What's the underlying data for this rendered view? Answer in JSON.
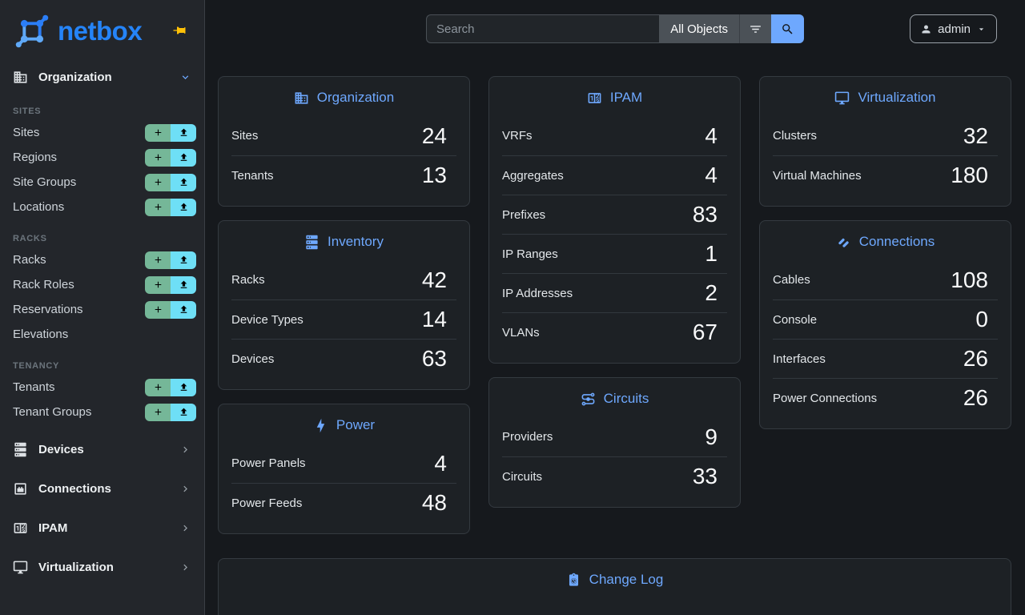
{
  "app": {
    "brand": "netbox",
    "accent_color": "#6ea8fe",
    "add_button_color": "#75b798",
    "import_button_color": "#6edff6",
    "pin_color": "#ffc107"
  },
  "topbar": {
    "search_placeholder": "Search",
    "scope_label": "All Objects",
    "user_label": "admin"
  },
  "sidebar": {
    "primary_group": {
      "label": "Organization",
      "icon": "building-icon",
      "expanded": true
    },
    "sections": [
      {
        "title": "Sites",
        "items": [
          {
            "label": "Sites",
            "actions": true
          },
          {
            "label": "Regions",
            "actions": true
          },
          {
            "label": "Site Groups",
            "actions": true
          },
          {
            "label": "Locations",
            "actions": true
          }
        ]
      },
      {
        "title": "Racks",
        "items": [
          {
            "label": "Racks",
            "actions": true
          },
          {
            "label": "Rack Roles",
            "actions": true
          },
          {
            "label": "Reservations",
            "actions": true
          },
          {
            "label": "Elevations",
            "actions": false
          }
        ]
      },
      {
        "title": "Tenancy",
        "items": [
          {
            "label": "Tenants",
            "actions": true
          },
          {
            "label": "Tenant Groups",
            "actions": true
          }
        ]
      }
    ],
    "groups": [
      {
        "label": "Devices",
        "icon": "server-icon"
      },
      {
        "label": "Connections",
        "icon": "ethernet-port-icon"
      },
      {
        "label": "IPAM",
        "icon": "counter-icon"
      },
      {
        "label": "Virtualization",
        "icon": "monitor-icon"
      }
    ]
  },
  "dashboard": {
    "columns": [
      [
        {
          "title": "Organization",
          "icon": "building-icon",
          "rows": [
            {
              "label": "Sites",
              "value": "24"
            },
            {
              "label": "Tenants",
              "value": "13"
            }
          ]
        },
        {
          "title": "Inventory",
          "icon": "server-icon",
          "rows": [
            {
              "label": "Racks",
              "value": "42"
            },
            {
              "label": "Device Types",
              "value": "14"
            },
            {
              "label": "Devices",
              "value": "63"
            }
          ]
        },
        {
          "title": "Power",
          "icon": "lightning-icon",
          "rows": [
            {
              "label": "Power Panels",
              "value": "4"
            },
            {
              "label": "Power Feeds",
              "value": "48"
            }
          ]
        }
      ],
      [
        {
          "title": "IPAM",
          "icon": "counter-icon",
          "rows": [
            {
              "label": "VRFs",
              "value": "4"
            },
            {
              "label": "Aggregates",
              "value": "4"
            },
            {
              "label": "Prefixes",
              "value": "83"
            },
            {
              "label": "IP Ranges",
              "value": "1"
            },
            {
              "label": "IP Addresses",
              "value": "2"
            },
            {
              "label": "VLANs",
              "value": "67"
            }
          ]
        },
        {
          "title": "Circuits",
          "icon": "circuits-icon",
          "rows": [
            {
              "label": "Providers",
              "value": "9"
            },
            {
              "label": "Circuits",
              "value": "33"
            }
          ]
        }
      ],
      [
        {
          "title": "Virtualization",
          "icon": "monitor-icon",
          "rows": [
            {
              "label": "Clusters",
              "value": "32"
            },
            {
              "label": "Virtual Machines",
              "value": "180"
            }
          ]
        },
        {
          "title": "Connections",
          "icon": "cable-icon",
          "rows": [
            {
              "label": "Cables",
              "value": "108"
            },
            {
              "label": "Console",
              "value": "0"
            },
            {
              "label": "Interfaces",
              "value": "26"
            },
            {
              "label": "Power Connections",
              "value": "26"
            }
          ]
        }
      ]
    ],
    "changelog": {
      "title": "Change Log",
      "icon": "clipboard-clock-icon"
    }
  }
}
